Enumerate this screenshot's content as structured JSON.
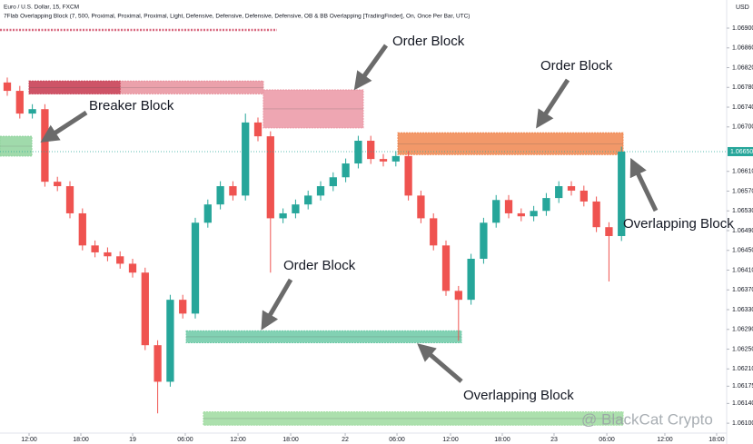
{
  "chart_data": {
    "type": "candlestick",
    "header": "Euro / U.S. Dollar, 15, FXCM",
    "indicator": "7Flab Overlapping Block (7, 500, Proximal, Proximal, Proximal, Light, Defensive, Defensive, Defensive, Defensive, OB & BB Overlapping [TradingFinder], On, Once Per Bar, UTC)",
    "currency": "USD",
    "up_color": "#26a69a",
    "down_color": "#ef5350",
    "candles": [
      [
        1.0679,
        1.068,
        1.06763,
        1.06773
      ],
      [
        1.06773,
        1.06783,
        1.06717,
        1.06727
      ],
      [
        1.06727,
        1.06746,
        1.06717,
        1.06736
      ],
      [
        1.06736,
        1.06746,
        1.06579,
        1.06589
      ],
      [
        1.06589,
        1.06599,
        1.0657,
        1.0658
      ],
      [
        1.0658,
        1.0659,
        1.06515,
        1.06525
      ],
      [
        1.06525,
        1.06535,
        1.0645,
        1.0646
      ],
      [
        1.0646,
        1.0647,
        1.06436,
        1.06446
      ],
      [
        1.06446,
        1.06456,
        1.06428,
        1.06438
      ],
      [
        1.06438,
        1.06448,
        1.06413,
        1.06423
      ],
      [
        1.06423,
        1.06433,
        1.06395,
        1.06405
      ],
      [
        1.06405,
        1.06415,
        1.06248,
        1.06258
      ],
      [
        1.06258,
        1.06268,
        1.0612,
        1.06184
      ],
      [
        1.06184,
        1.0636,
        1.06174,
        1.0635
      ],
      [
        1.0635,
        1.0636,
        1.06312,
        1.06322
      ],
      [
        1.06322,
        1.06516,
        1.06312,
        1.06506
      ],
      [
        1.06506,
        1.06553,
        1.06496,
        1.06543
      ],
      [
        1.06543,
        1.0659,
        1.06533,
        1.0658
      ],
      [
        1.0658,
        1.0659,
        1.06551,
        1.06561
      ],
      [
        1.06561,
        1.06727,
        1.06551,
        1.06709
      ],
      [
        1.06709,
        1.06719,
        1.06671,
        1.06681
      ],
      [
        1.06681,
        1.06691,
        1.06405,
        1.06515
      ],
      [
        1.06515,
        1.06535,
        1.06505,
        1.06525
      ],
      [
        1.06525,
        1.06553,
        1.06515,
        1.06543
      ],
      [
        1.06543,
        1.06571,
        1.06533,
        1.06561
      ],
      [
        1.06561,
        1.0659,
        1.06551,
        1.0658
      ],
      [
        1.0658,
        1.06608,
        1.0657,
        1.06598
      ],
      [
        1.06598,
        1.06636,
        1.06588,
        1.06626
      ],
      [
        1.06626,
        1.06682,
        1.06616,
        1.06672
      ],
      [
        1.06672,
        1.06682,
        1.06625,
        1.06635
      ],
      [
        1.06635,
        1.06645,
        1.0662,
        1.0663
      ],
      [
        1.0663,
        1.06651,
        1.0662,
        1.06641
      ],
      [
        1.06641,
        1.06651,
        1.06551,
        1.06561
      ],
      [
        1.06561,
        1.06571,
        1.06505,
        1.06515
      ],
      [
        1.06515,
        1.06525,
        1.0645,
        1.0646
      ],
      [
        1.0646,
        1.0647,
        1.06358,
        1.06368
      ],
      [
        1.06368,
        1.06378,
        1.06267,
        1.0635
      ],
      [
        1.0635,
        1.06443,
        1.0634,
        1.06433
      ],
      [
        1.06433,
        1.06516,
        1.06423,
        1.06506
      ],
      [
        1.06506,
        1.06562,
        1.06496,
        1.06552
      ],
      [
        1.06552,
        1.06562,
        1.06515,
        1.06525
      ],
      [
        1.06525,
        1.06535,
        1.06509,
        1.06519
      ],
      [
        1.06519,
        1.0654,
        1.06509,
        1.0653
      ],
      [
        1.0653,
        1.06566,
        1.0652,
        1.06556
      ],
      [
        1.06556,
        1.0659,
        1.06546,
        1.0658
      ],
      [
        1.0658,
        1.0659,
        1.06561,
        1.06571
      ],
      [
        1.06571,
        1.06581,
        1.06539,
        1.06549
      ],
      [
        1.06549,
        1.06559,
        1.06487,
        1.06497
      ],
      [
        1.06497,
        1.06507,
        1.06387,
        1.06479
      ],
      [
        1.06479,
        1.0666,
        1.06469,
        1.0665
      ]
    ],
    "zones": [
      {
        "start": 1.74,
        "end": 20.43,
        "top": 1.06793,
        "bottom": 1.06767,
        "color": "#e8909c"
      },
      {
        "start": 1.74,
        "end": 9.0,
        "top": 1.06793,
        "bottom": 1.06767,
        "color": "#c9475b"
      },
      {
        "start": 20.43,
        "end": 28.4,
        "top": 1.06775,
        "bottom": 1.06698,
        "color": "#eb97a4"
      },
      {
        "start": 31.16,
        "end": 49.13,
        "top": 1.06688,
        "bottom": 1.06644,
        "color": "#f0864f"
      },
      {
        "start": -0.58,
        "end": 1.96,
        "top": 1.06681,
        "bottom": 1.06641,
        "color": "#8fd39c"
      },
      {
        "start": 14.28,
        "end": 36.23,
        "top": 1.06287,
        "bottom": 1.06263,
        "color": "#6cc9a6"
      },
      {
        "start": 15.65,
        "end": 49.13,
        "top": 1.06123,
        "bottom": 1.06096,
        "color": "#9edb9f"
      }
    ],
    "current_price": {
      "value": 1.0665,
      "label": "1.06650"
    },
    "xlim": [
      -0.58,
      57.39
    ],
    "ylim": [
      1.0608,
      1.06957
    ],
    "yticks": [
      {
        "value": 1.069,
        "label": "1.06900"
      },
      {
        "value": 1.0686,
        "label": "1.06860"
      },
      {
        "value": 1.0682,
        "label": "1.06820"
      },
      {
        "value": 1.0678,
        "label": "1.06780"
      },
      {
        "value": 1.0674,
        "label": "1.06740"
      },
      {
        "value": 1.067,
        "label": "1.06700"
      },
      {
        "value": 1.0661,
        "label": "1.06610"
      },
      {
        "value": 1.0657,
        "label": "1.06570"
      },
      {
        "value": 1.0653,
        "label": "1.06530"
      },
      {
        "value": 1.0649,
        "label": "1.06490"
      },
      {
        "value": 1.0645,
        "label": "1.06450"
      },
      {
        "value": 1.0641,
        "label": "1.06410"
      },
      {
        "value": 1.0637,
        "label": "1.06370"
      },
      {
        "value": 1.0633,
        "label": "1.06330"
      },
      {
        "value": 1.0629,
        "label": "1.06290"
      },
      {
        "value": 1.0625,
        "label": "1.06250"
      },
      {
        "value": 1.0621,
        "label": "1.06210"
      },
      {
        "value": 1.06175,
        "label": "1.06175"
      },
      {
        "value": 1.0614,
        "label": "1.06140"
      },
      {
        "value": 1.061,
        "label": "1.06100"
      }
    ],
    "xticks": [
      {
        "value": 1.74,
        "label": "12:00"
      },
      {
        "value": 5.87,
        "label": "18:00"
      },
      {
        "value": 10.0,
        "label": "19"
      },
      {
        "value": 14.2,
        "label": "06:00"
      },
      {
        "value": 18.41,
        "label": "12:00"
      },
      {
        "value": 22.61,
        "label": "18:00"
      },
      {
        "value": 26.96,
        "label": "22"
      },
      {
        "value": 31.09,
        "label": "06:00"
      },
      {
        "value": 35.36,
        "label": "12:00"
      },
      {
        "value": 39.49,
        "label": "18:00"
      },
      {
        "value": 43.62,
        "label": "23"
      },
      {
        "value": 47.83,
        "label": "06:00"
      },
      {
        "value": 52.46,
        "label": "12:00"
      },
      {
        "value": 56.59,
        "label": "18:00"
      }
    ],
    "annotations": [
      "Order Block",
      "Order Block",
      "Breaker Block",
      "Order Block",
      "Overlapping Block",
      "Overlapping Block"
    ],
    "watermark": "@ BlackCat Crypto"
  }
}
